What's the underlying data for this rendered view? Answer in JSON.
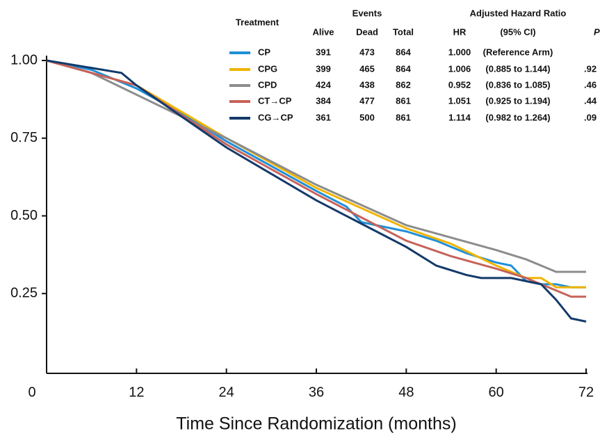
{
  "chart_data": {
    "type": "line",
    "x_label": "Time Since Randomization (months)",
    "xlim": [
      0,
      72
    ],
    "xticks": [
      0,
      12,
      24,
      36,
      48,
      60,
      72
    ],
    "ylim": [
      0,
      1
    ],
    "yticks": [
      {
        "value": 0.25,
        "label": "0.25"
      },
      {
        "value": 0.5,
        "label": "0.50"
      },
      {
        "value": 0.75,
        "label": "0.75"
      },
      {
        "value": 1,
        "label": "1.00"
      }
    ],
    "series": [
      {
        "name": "CP",
        "color": "#1f8fd8",
        "x": [
          0,
          6,
          12,
          18,
          24,
          30,
          36,
          40,
          42,
          48,
          52,
          56,
          60,
          62,
          64,
          66,
          68,
          70,
          72
        ],
        "values": [
          1,
          0.97,
          0.91,
          0.83,
          0.74,
          0.66,
          0.58,
          0.53,
          0.48,
          0.45,
          0.42,
          0.38,
          0.35,
          0.34,
          0.29,
          0.28,
          0.28,
          0.27,
          0.27
        ]
      },
      {
        "name": "CPG",
        "color": "#f0b400",
        "x": [
          0,
          12,
          24,
          36,
          48,
          54,
          60,
          64,
          66,
          68,
          72
        ],
        "values": [
          1,
          0.92,
          0.75,
          0.59,
          0.46,
          0.41,
          0.34,
          0.3,
          0.3,
          0.27,
          0.27
        ]
      },
      {
        "name": "CPD",
        "color": "#8c8c8c",
        "x": [
          0,
          6,
          12,
          24,
          36,
          48,
          54,
          60,
          64,
          66,
          68,
          72
        ],
        "values": [
          1,
          0.96,
          0.89,
          0.75,
          0.6,
          0.47,
          0.43,
          0.39,
          0.36,
          0.34,
          0.32,
          0.32
        ]
      },
      {
        "name": "CT→CP",
        "color": "#c6625a",
        "x": [
          0,
          12,
          24,
          36,
          48,
          54,
          60,
          64,
          66,
          68,
          70,
          72
        ],
        "values": [
          1,
          0.92,
          0.73,
          0.57,
          0.42,
          0.37,
          0.33,
          0.3,
          0.28,
          0.26,
          0.24,
          0.24
        ]
      },
      {
        "name": "CG→CP",
        "color": "#133a6a",
        "x": [
          0,
          10,
          12,
          24,
          36,
          48,
          52,
          56,
          58,
          62,
          66,
          68,
          70,
          72
        ],
        "values": [
          1,
          0.96,
          0.92,
          0.72,
          0.55,
          0.4,
          0.34,
          0.31,
          0.3,
          0.3,
          0.28,
          0.23,
          0.17,
          0.16
        ]
      }
    ],
    "table": {
      "treatment_header": "Treatment",
      "events_header": "Events",
      "hr_header": "Adjusted Hazard Ratio",
      "columns": [
        "Alive",
        "Dead",
        "Total",
        "HR",
        "(95% CI)",
        "P"
      ],
      "rows": [
        [
          "391",
          "473",
          "864",
          "1.000",
          "(Reference Arm)",
          null
        ],
        [
          "399",
          "465",
          "864",
          "1.006",
          "(0.885 to 1.144)",
          ".92"
        ],
        [
          "424",
          "438",
          "862",
          "0.952",
          "(0.836 to 1.085)",
          ".46"
        ],
        [
          "384",
          "477",
          "861",
          "1.051",
          "(0.925 to 1.194)",
          ".44"
        ],
        [
          "361",
          "500",
          "861",
          "1.114",
          "(0.982 to 1.264)",
          ".09"
        ]
      ]
    }
  }
}
